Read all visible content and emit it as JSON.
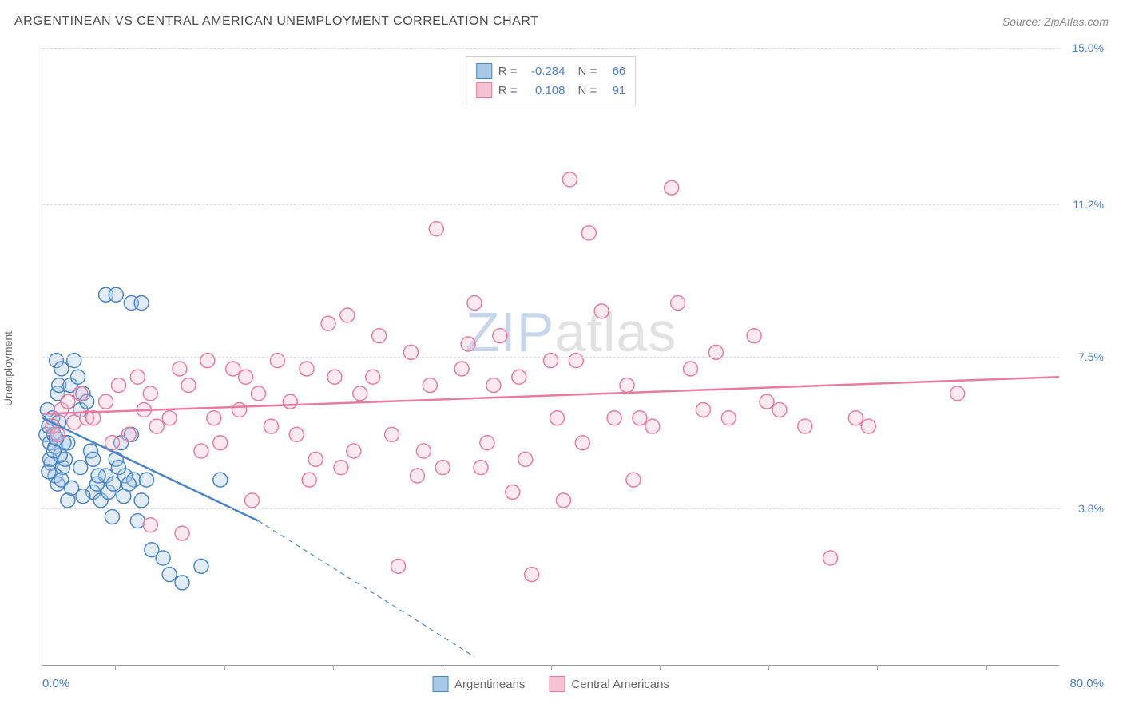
{
  "header": {
    "title": "ARGENTINEAN VS CENTRAL AMERICAN UNEMPLOYMENT CORRELATION CHART",
    "source_prefix": "Source: ",
    "source_name": "ZipAtlas.com"
  },
  "watermark": {
    "part1": "ZIP",
    "part2": "atlas"
  },
  "chart": {
    "type": "scatter",
    "y_axis_label": "Unemployment",
    "background_color": "#ffffff",
    "grid_color": "#dcdcdc",
    "axis_color": "#999999",
    "tick_label_color": "#4a7ec9",
    "xlim": [
      0,
      80
    ],
    "ylim": [
      0,
      15
    ],
    "x_label_min": "0.0%",
    "x_label_max": "80.0%",
    "x_ticks": [
      5.7,
      14.3,
      22.9,
      31.4,
      40.0,
      48.6,
      57.1,
      65.7,
      74.3
    ],
    "y_gridlines": [
      {
        "value": 3.8,
        "label": "3.8%"
      },
      {
        "value": 7.5,
        "label": "7.5%"
      },
      {
        "value": 11.2,
        "label": "11.2%"
      },
      {
        "value": 15.0,
        "label": "15.0%"
      }
    ],
    "marker_radius": 9,
    "marker_stroke_width": 1.5,
    "marker_fill_opacity": 0.35,
    "series": [
      {
        "name": "Argentineans",
        "color_stroke": "#4a86c7",
        "color_fill": "#a8c8e8",
        "stats": {
          "R": "-0.284",
          "N": "66"
        },
        "trend": {
          "solid": {
            "x1": 0,
            "y1": 6.0,
            "x2": 17,
            "y2": 3.5
          },
          "dashed": {
            "x1": 17,
            "y1": 3.5,
            "x2": 34,
            "y2": 0.2
          },
          "stroke_width": 2.5
        },
        "points": [
          [
            0.3,
            5.6
          ],
          [
            0.4,
            6.2
          ],
          [
            0.5,
            5.8
          ],
          [
            0.6,
            5.4
          ],
          [
            0.7,
            4.9
          ],
          [
            0.8,
            6.0
          ],
          [
            0.9,
            5.6
          ],
          [
            1.0,
            5.3
          ],
          [
            1.1,
            7.4
          ],
          [
            1.2,
            6.6
          ],
          [
            1.3,
            6.8
          ],
          [
            1.5,
            7.2
          ],
          [
            1.6,
            4.8
          ],
          [
            1.8,
            5.0
          ],
          [
            1.0,
            4.6
          ],
          [
            1.2,
            4.4
          ],
          [
            1.5,
            4.5
          ],
          [
            0.5,
            4.7
          ],
          [
            2.0,
            5.4
          ],
          [
            2.2,
            6.8
          ],
          [
            2.5,
            7.4
          ],
          [
            2.8,
            7.0
          ],
          [
            3.0,
            6.2
          ],
          [
            3.2,
            6.6
          ],
          [
            3.5,
            6.4
          ],
          [
            3.8,
            5.2
          ],
          [
            4.0,
            4.2
          ],
          [
            4.3,
            4.4
          ],
          [
            4.6,
            4.0
          ],
          [
            5.0,
            4.6
          ],
          [
            5.2,
            4.2
          ],
          [
            5.5,
            3.6
          ],
          [
            5.8,
            5.0
          ],
          [
            6.2,
            5.4
          ],
          [
            6.5,
            4.6
          ],
          [
            7.0,
            5.6
          ],
          [
            7.2,
            4.5
          ],
          [
            7.5,
            3.5
          ],
          [
            7.8,
            4.0
          ],
          [
            8.2,
            4.5
          ],
          [
            8.6,
            2.8
          ],
          [
            9.5,
            2.6
          ],
          [
            10.0,
            2.2
          ],
          [
            11.0,
            2.0
          ],
          [
            12.5,
            2.4
          ],
          [
            5.0,
            9.0
          ],
          [
            5.8,
            9.0
          ],
          [
            7.0,
            8.8
          ],
          [
            7.8,
            8.8
          ],
          [
            2.0,
            4.0
          ],
          [
            2.3,
            4.3
          ],
          [
            3.0,
            4.8
          ],
          [
            3.2,
            4.1
          ],
          [
            4.0,
            5.0
          ],
          [
            4.4,
            4.6
          ],
          [
            5.6,
            4.4
          ],
          [
            6.0,
            4.8
          ],
          [
            6.4,
            4.1
          ],
          [
            6.8,
            4.4
          ],
          [
            1.4,
            5.1
          ],
          [
            1.7,
            5.4
          ],
          [
            0.6,
            5.0
          ],
          [
            0.9,
            5.2
          ],
          [
            1.1,
            5.5
          ],
          [
            1.3,
            5.9
          ],
          [
            14.0,
            4.5
          ]
        ]
      },
      {
        "name": "Central Americans",
        "color_stroke": "#e87ba0",
        "color_fill": "#f5c2d3",
        "stats": {
          "R": "0.108",
          "N": "91"
        },
        "trend": {
          "solid": {
            "x1": 0,
            "y1": 6.1,
            "x2": 80,
            "y2": 7.0
          },
          "stroke_width": 2.5
        },
        "points": [
          [
            0.8,
            5.8
          ],
          [
            1.2,
            5.6
          ],
          [
            1.5,
            6.2
          ],
          [
            2.0,
            6.4
          ],
          [
            2.5,
            5.9
          ],
          [
            3.0,
            6.6
          ],
          [
            3.5,
            6.0
          ],
          [
            4.0,
            6.0
          ],
          [
            5.0,
            6.4
          ],
          [
            5.5,
            5.4
          ],
          [
            6.0,
            6.8
          ],
          [
            6.8,
            5.6
          ],
          [
            7.5,
            7.0
          ],
          [
            8.0,
            6.2
          ],
          [
            8.5,
            6.6
          ],
          [
            9.0,
            5.8
          ],
          [
            10.0,
            6.0
          ],
          [
            10.8,
            7.2
          ],
          [
            11.5,
            6.8
          ],
          [
            12.5,
            5.2
          ],
          [
            13.0,
            7.4
          ],
          [
            13.5,
            6.0
          ],
          [
            14.0,
            5.4
          ],
          [
            15.0,
            7.2
          ],
          [
            15.5,
            6.2
          ],
          [
            16.0,
            7.0
          ],
          [
            17.0,
            6.6
          ],
          [
            18.0,
            5.8
          ],
          [
            18.5,
            7.4
          ],
          [
            19.5,
            6.4
          ],
          [
            20.0,
            5.6
          ],
          [
            20.8,
            7.2
          ],
          [
            21.5,
            5.0
          ],
          [
            22.5,
            8.3
          ],
          [
            23.0,
            7.0
          ],
          [
            24.0,
            8.5
          ],
          [
            24.5,
            5.2
          ],
          [
            25.0,
            6.6
          ],
          [
            26.0,
            7.0
          ],
          [
            26.5,
            8.0
          ],
          [
            27.5,
            5.6
          ],
          [
            28.0,
            2.4
          ],
          [
            29.0,
            7.6
          ],
          [
            30.0,
            5.2
          ],
          [
            30.5,
            6.8
          ],
          [
            31.0,
            10.6
          ],
          [
            31.5,
            4.8
          ],
          [
            33.0,
            7.2
          ],
          [
            33.5,
            7.8
          ],
          [
            34.0,
            8.8
          ],
          [
            35.0,
            5.4
          ],
          [
            35.5,
            6.8
          ],
          [
            36.0,
            8.0
          ],
          [
            37.0,
            4.2
          ],
          [
            37.5,
            7.0
          ],
          [
            38.0,
            5.0
          ],
          [
            38.5,
            2.2
          ],
          [
            40.0,
            7.4
          ],
          [
            40.5,
            6.0
          ],
          [
            41.0,
            4.0
          ],
          [
            41.5,
            11.8
          ],
          [
            42.0,
            7.4
          ],
          [
            42.5,
            5.4
          ],
          [
            43.0,
            10.5
          ],
          [
            44.0,
            8.6
          ],
          [
            45.0,
            6.0
          ],
          [
            46.0,
            6.8
          ],
          [
            47.0,
            6.0
          ],
          [
            48.0,
            5.8
          ],
          [
            49.5,
            11.6
          ],
          [
            50.0,
            8.8
          ],
          [
            51.0,
            7.2
          ],
          [
            52.0,
            6.2
          ],
          [
            53.0,
            7.6
          ],
          [
            54.0,
            6.0
          ],
          [
            56.0,
            8.0
          ],
          [
            57.0,
            6.4
          ],
          [
            58.0,
            6.2
          ],
          [
            60.0,
            5.8
          ],
          [
            62.0,
            2.6
          ],
          [
            64.0,
            6.0
          ],
          [
            65.0,
            5.8
          ],
          [
            72.0,
            6.6
          ],
          [
            8.5,
            3.4
          ],
          [
            11.0,
            3.2
          ],
          [
            16.5,
            4.0
          ],
          [
            21.0,
            4.5
          ],
          [
            23.5,
            4.8
          ],
          [
            29.5,
            4.6
          ],
          [
            34.5,
            4.8
          ],
          [
            46.5,
            4.5
          ]
        ]
      }
    ],
    "stats_legend": {
      "R_label": "R =",
      "N_label": "N ="
    }
  }
}
